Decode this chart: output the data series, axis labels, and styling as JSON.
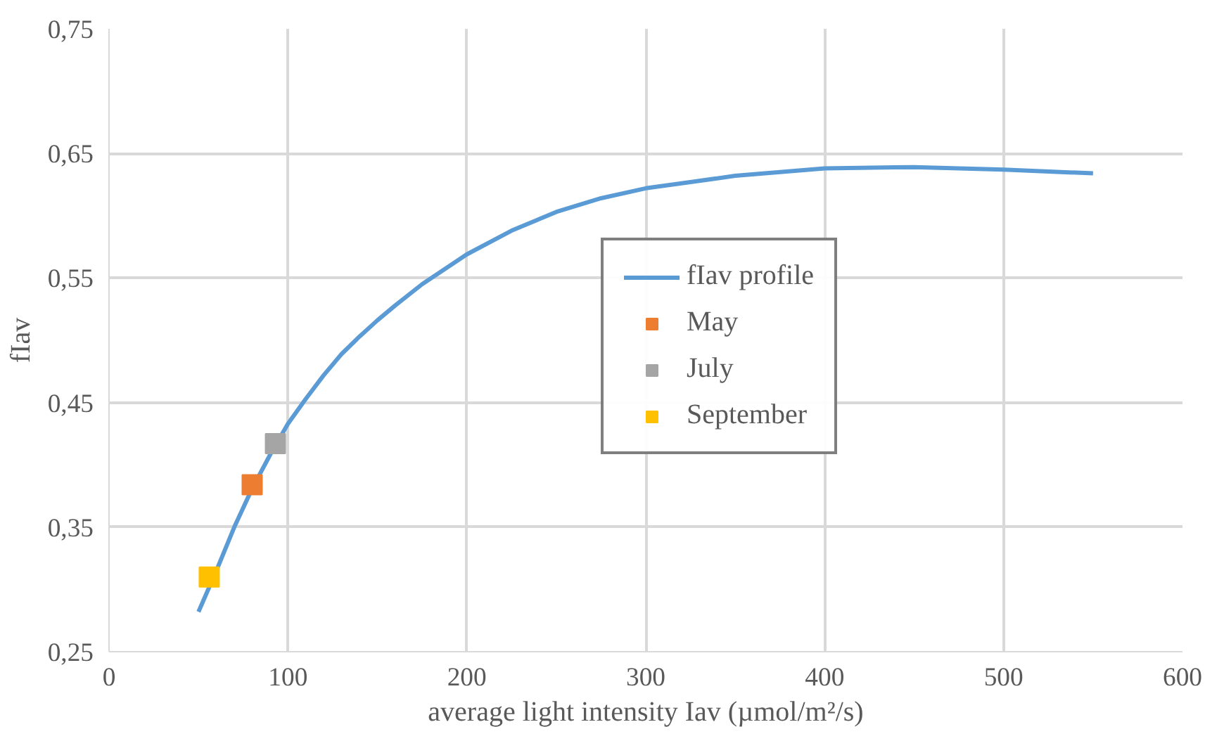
{
  "chart_data": {
    "type": "line",
    "xlabel": "average light intensity Iav (µmol/m²/s)",
    "ylabel": "fIav",
    "xlim": [
      0,
      600
    ],
    "xticks": [
      0,
      100,
      200,
      300,
      400,
      500,
      600
    ],
    "ylim": [
      0.25,
      0.75
    ],
    "yticks": [
      {
        "value": 0.25,
        "label": "0,25"
      },
      {
        "value": 0.35,
        "label": "0,35"
      },
      {
        "value": 0.45,
        "label": "0,45"
      },
      {
        "value": 0.55,
        "label": "0,55"
      },
      {
        "value": 0.65,
        "label": "0,65"
      },
      {
        "value": 0.75,
        "label": "0,75"
      }
    ],
    "grid": true,
    "legend": "right",
    "series": [
      {
        "name": "fIav profile",
        "color": "#5b9bd5",
        "x": [
          50,
          60,
          70,
          80,
          90,
          100,
          110,
          120,
          130,
          140,
          150,
          160,
          175,
          200,
          225,
          250,
          275,
          300,
          350,
          400,
          450,
          500,
          550
        ],
        "values": [
          0.282,
          0.315,
          0.35,
          0.381,
          0.408,
          0.433,
          0.453,
          0.472,
          0.489,
          0.503,
          0.516,
          0.528,
          0.545,
          0.569,
          0.588,
          0.603,
          0.614,
          0.622,
          0.632,
          0.638,
          0.639,
          0.637,
          0.634
        ]
      },
      {
        "name": "May",
        "type": "scatter",
        "color": "#ed7d31",
        "marker": "square",
        "x": [
          80
        ],
        "values": [
          0.384
        ]
      },
      {
        "name": "July",
        "type": "scatter",
        "color": "#a5a5a5",
        "marker": "square",
        "x": [
          93
        ],
        "values": [
          0.417
        ]
      },
      {
        "name": "September",
        "type": "scatter",
        "color": "#ffc000",
        "marker": "square",
        "x": [
          56
        ],
        "values": [
          0.31
        ]
      }
    ]
  }
}
